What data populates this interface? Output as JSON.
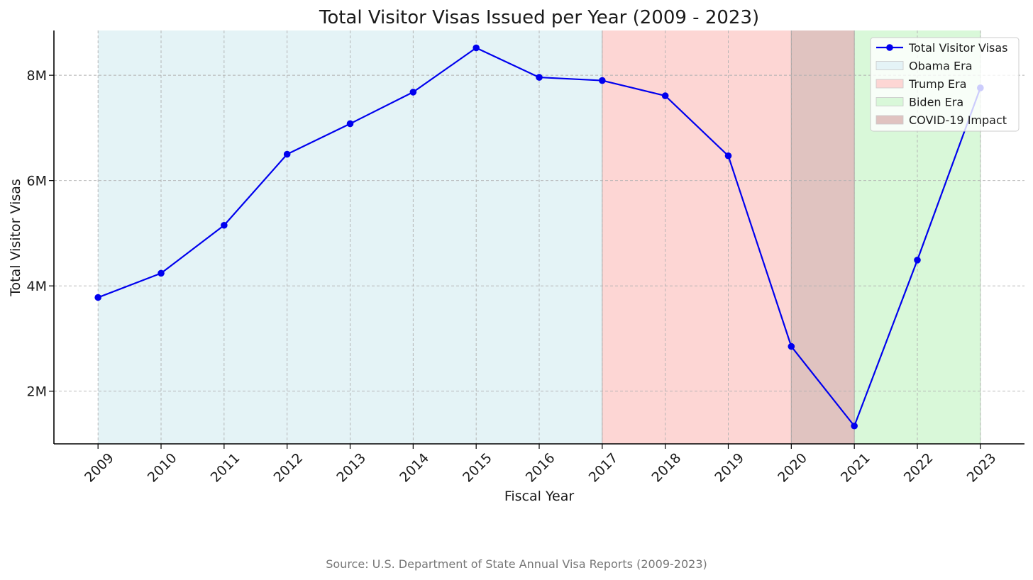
{
  "chart_data": {
    "type": "line",
    "title": "Total Visitor Visas Issued per Year (2009 - 2023)",
    "xlabel": "Fiscal Year",
    "ylabel": "Total Visitor Visas",
    "x": [
      2009,
      2010,
      2011,
      2012,
      2013,
      2014,
      2015,
      2016,
      2017,
      2018,
      2019,
      2020,
      2021,
      2022,
      2023
    ],
    "series": [
      {
        "name": "Total Visitor Visas",
        "color": "#0000ee",
        "values": [
          3780000,
          4240000,
          5150000,
          6500000,
          7080000,
          7680000,
          8520000,
          7960000,
          7900000,
          7610000,
          6470000,
          2850000,
          1340000,
          4490000,
          7760000
        ]
      }
    ],
    "ylim": [
      1000000,
      8850000
    ],
    "xlim": [
      2008.3,
      2023.7
    ],
    "yticks": [
      2000000,
      4000000,
      6000000,
      8000000
    ],
    "ytick_labels": [
      "2M",
      "4M",
      "6M",
      "8M"
    ],
    "grid": true,
    "legend_position": "top-right",
    "shaded_regions": [
      {
        "name": "Obama Era",
        "x_start": 2009,
        "x_end": 2017,
        "color": "#e4f3f6"
      },
      {
        "name": "Trump Era",
        "x_start": 2017,
        "x_end": 2021,
        "color": "#fdd6d4"
      },
      {
        "name": "Biden Era",
        "x_start": 2021,
        "x_end": 2023,
        "color": "#d9f8d9"
      },
      {
        "name": "COVID-19 Impact",
        "x_start": 2020,
        "x_end": 2021,
        "color": "#e0c3c0"
      }
    ],
    "legend": [
      "Total Visitor Visas",
      "Obama Era",
      "Trump Era",
      "Biden Era",
      "COVID-19 Impact"
    ]
  },
  "source": "Source: U.S. Department of State Annual Visa Reports (2009-2023)"
}
